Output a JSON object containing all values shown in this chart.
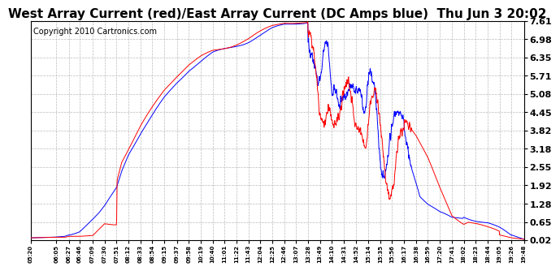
{
  "title": "West Array Current (red)/East Array Current (DC Amps blue)  Thu Jun 3 20:02",
  "copyright": "Copyright 2010 Cartronics.com",
  "yticks": [
    0.02,
    0.65,
    1.28,
    1.92,
    2.55,
    3.18,
    3.82,
    4.45,
    5.08,
    5.71,
    6.35,
    6.98,
    7.61
  ],
  "ylim": [
    0.02,
    7.61
  ],
  "xtick_labels": [
    "05:20",
    "06:05",
    "06:27",
    "06:46",
    "07:09",
    "07:30",
    "07:51",
    "08:12",
    "08:33",
    "08:54",
    "09:15",
    "09:37",
    "09:58",
    "10:19",
    "10:40",
    "11:01",
    "11:22",
    "11:43",
    "12:04",
    "12:25",
    "12:46",
    "13:07",
    "13:28",
    "13:49",
    "14:10",
    "14:31",
    "14:52",
    "15:14",
    "15:35",
    "15:56",
    "16:17",
    "16:38",
    "16:59",
    "17:20",
    "17:41",
    "18:02",
    "18:23",
    "18:44",
    "19:05",
    "19:26",
    "19:48"
  ],
  "background_color": "#ffffff",
  "plot_bg_color": "#ffffff",
  "grid_color": "#aaaaaa",
  "line_color_red": "#ff0000",
  "line_color_blue": "#0000ff",
  "title_fontsize": 11,
  "copyright_fontsize": 7
}
